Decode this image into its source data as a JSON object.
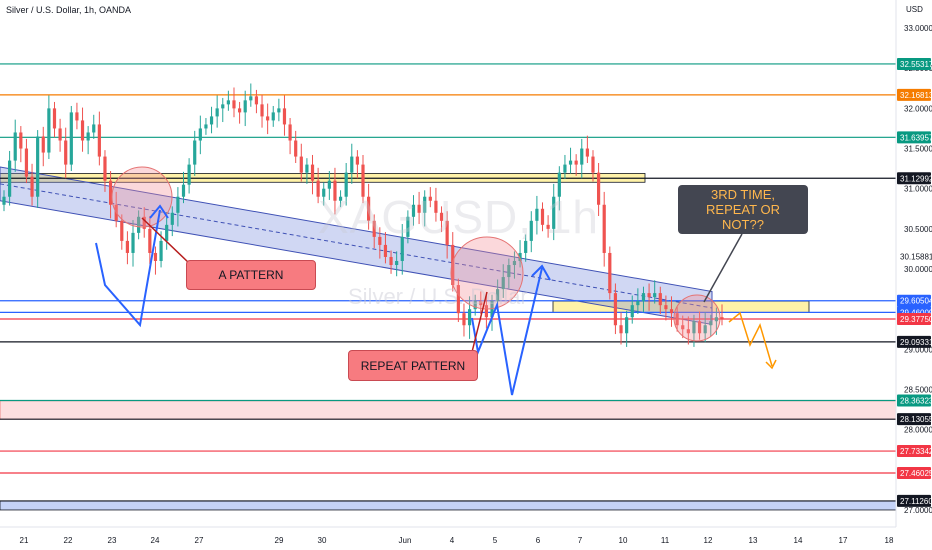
{
  "header": {
    "symbol_line": "Silver / U.S. Dollar, 1h, OANDA",
    "currency": "USD"
  },
  "watermark": {
    "ticker": "XAGUSD, 1h",
    "name": "Silver / U.S. Dollar"
  },
  "annotations": {
    "a_pattern": "A PATTERN",
    "repeat_pattern": "REPEAT PATTERN",
    "third_time": "3RD TIME, REPEAT OR NOT??"
  },
  "colors": {
    "up": "#26a69a",
    "down": "#ef5350",
    "channel": "#8fa0e0",
    "zone_yellow": "#fff2a8",
    "zone_pink": "#fcdfe0",
    "callout_red": "#f77b80",
    "callout_dark": "#434651",
    "arrow_blue": "#2962ff",
    "arrow_orange": "#ff9800"
  },
  "chart_data": {
    "type": "candlestick",
    "title": "Silver / U.S. Dollar, 1h, OANDA",
    "xlabel": "",
    "ylabel": "USD",
    "ylim": [
      26.9,
      33.2
    ],
    "y_ticks": [
      "33.00000",
      "32.50000",
      "32.00000",
      "31.50000",
      "31.00000",
      "30.50000",
      "30.00000",
      "29.00000",
      "28.50000",
      "28.00000",
      "27.00000"
    ],
    "x_ticks": [
      "21",
      "22",
      "23",
      "24",
      "27",
      "29",
      "30",
      "Jun",
      "4",
      "5",
      "6",
      "7",
      "10",
      "11",
      "12",
      "13",
      "14",
      "17",
      "18"
    ],
    "price_levels": [
      {
        "label": "32.55317",
        "value": 32.55317,
        "color": "#089981"
      },
      {
        "label": "32.16813",
        "value": 32.16813,
        "color": "#f57c00"
      },
      {
        "label": "31.63957",
        "value": 31.63957,
        "color": "#089981"
      },
      {
        "label": "31.12992",
        "value": 31.12992,
        "color": "#131722"
      },
      {
        "label": "30.15881",
        "value": 30.15881,
        "color": null
      },
      {
        "label": "29.60504",
        "value": 29.60504,
        "color": "#2962ff"
      },
      {
        "label": "29.46009",
        "value": 29.46009,
        "color": "#2962ff"
      },
      {
        "label": "29.37750",
        "value": 29.3775,
        "color": "#f23645"
      },
      {
        "label": "29.09331",
        "value": 29.09331,
        "color": "#131722"
      },
      {
        "label": "28.36323",
        "value": 28.36323,
        "color": "#089981"
      },
      {
        "label": "28.13055",
        "value": 28.13055,
        "color": "#131722"
      },
      {
        "label": "27.73342",
        "value": 27.73342,
        "color": "#f23645"
      },
      {
        "label": "27.46025",
        "value": 27.46025,
        "color": "#f23645"
      },
      {
        "label": "27.11260",
        "value": 27.1126,
        "color": "#131722"
      }
    ],
    "zones": [
      {
        "name": "resistance-zone",
        "y": [
          31.08,
          31.19
        ],
        "x": [
          "20",
          "10"
        ],
        "color": "#fff2a8"
      },
      {
        "name": "current-zone",
        "y": [
          29.46,
          29.6
        ],
        "x": [
          "6",
          "14"
        ],
        "color": "#fff2a8"
      },
      {
        "name": "pink-zone",
        "y": [
          28.13,
          28.36
        ],
        "x": [
          "20",
          "18"
        ],
        "color": "#fcdfe0"
      },
      {
        "name": "blue-zone",
        "y": [
          27.0,
          27.11
        ],
        "x": [
          "20",
          "18"
        ],
        "color": "#c5d3f7"
      }
    ],
    "channel": {
      "start": {
        "x": "20",
        "y": [
          31.27,
          30.85
        ]
      },
      "end": {
        "x": "12",
        "y": [
          29.72,
          29.31
        ]
      }
    },
    "last_price": 29.3775,
    "close_series": [
      30.9,
      31.35,
      31.7,
      31.5,
      31.15,
      30.9,
      31.65,
      31.45,
      32.0,
      31.75,
      31.6,
      31.3,
      31.95,
      31.85,
      31.6,
      31.7,
      31.8,
      31.4,
      31.1,
      30.8,
      30.6,
      30.35,
      30.2,
      30.45,
      30.65,
      30.5,
      30.2,
      30.1,
      30.35,
      30.55,
      30.7,
      30.9,
      31.05,
      31.3,
      31.6,
      31.75,
      31.8,
      31.9,
      32.0,
      32.05,
      32.1,
      32.0,
      31.95,
      32.1,
      32.15,
      32.05,
      31.9,
      31.85,
      31.95,
      32.0,
      31.8,
      31.6,
      31.4,
      31.2,
      31.3,
      31.1,
      30.9,
      31.0,
      31.1,
      30.85,
      30.9,
      31.2,
      31.4,
      31.3,
      30.9,
      30.6,
      30.4,
      30.3,
      30.15,
      30.05,
      30.1,
      30.4,
      30.65,
      30.8,
      30.7,
      30.9,
      30.85,
      30.7,
      30.6,
      30.3,
      29.8,
      29.45,
      29.3,
      29.5,
      29.6,
      29.55,
      29.4,
      29.6,
      29.75,
      29.9,
      30.05,
      30.1,
      30.2,
      30.35,
      30.6,
      30.75,
      30.55,
      30.5,
      30.9,
      31.2,
      31.3,
      31.35,
      31.3,
      31.5,
      31.4,
      31.2,
      30.8,
      30.2,
      29.7,
      29.3,
      29.2,
      29.4,
      29.55,
      29.6,
      29.7,
      29.65,
      29.7,
      29.55,
      29.5,
      29.45,
      29.3,
      29.25,
      29.2,
      29.35,
      29.2,
      29.3,
      29.35,
      29.4,
      29.38
    ]
  }
}
